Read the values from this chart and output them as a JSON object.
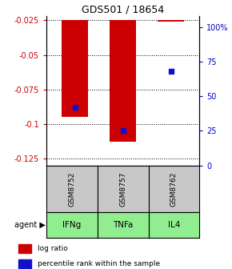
{
  "title": "GDS501 / 18654",
  "samples": [
    "GSM8752",
    "GSM8757",
    "GSM8762"
  ],
  "agents": [
    "IFNg",
    "TNFa",
    "IL4"
  ],
  "log_ratios": [
    -0.095,
    -0.113,
    -0.026
  ],
  "percentile_ranks": [
    42,
    25,
    68
  ],
  "ylim_left": [
    -0.13,
    -0.022
  ],
  "yticks_left": [
    -0.025,
    -0.05,
    -0.075,
    -0.1,
    -0.125
  ],
  "ylim_right": [
    0,
    108
  ],
  "yticks_right": [
    0,
    25,
    50,
    75,
    100
  ],
  "ytick_right_labels": [
    "0",
    "25",
    "50",
    "75",
    "100%"
  ],
  "bar_color": "#CC0000",
  "dot_color": "#1111CC",
  "bar_width": 0.55,
  "legend_bar_label": "log ratio",
  "legend_dot_label": "percentile rank within the sample",
  "sample_box_color": "#C8C8C8",
  "agent_box_color": "#90EE90",
  "left_axis_color": "#CC0000",
  "right_axis_color": "#0000CC"
}
